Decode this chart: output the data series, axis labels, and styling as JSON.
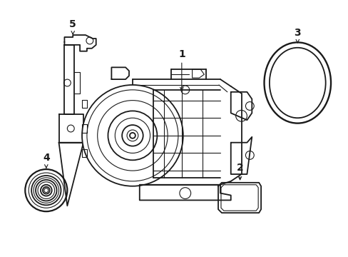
{
  "bg_color": "#ffffff",
  "line_color": "#1a1a1a",
  "lw": 1.3,
  "tlw": 0.8,
  "figsize": [
    4.89,
    3.6
  ],
  "dpi": 100
}
